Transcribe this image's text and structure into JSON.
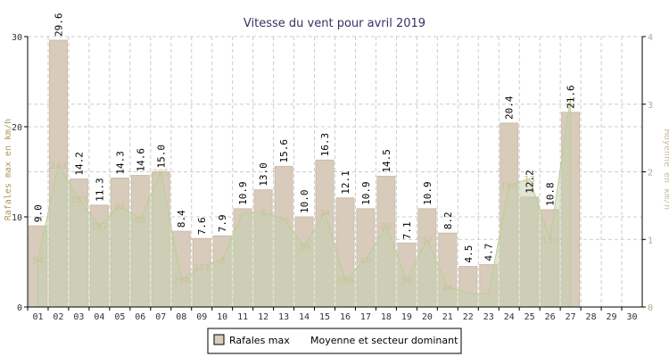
{
  "chart_data": {
    "type": "bar",
    "title": "Vitesse du vent pour avril 2019",
    "xlabel": "",
    "ylabel": "Rafales max en km/h",
    "ylabel_right": "Moyenne en km/h",
    "ylim": [
      0,
      30
    ],
    "ylim_right": [
      0,
      4
    ],
    "yticks": [
      0,
      10,
      20,
      30
    ],
    "yticks_right": [
      0,
      1,
      2,
      3,
      4
    ],
    "categories": [
      "01",
      "02",
      "03",
      "04",
      "05",
      "06",
      "07",
      "08",
      "09",
      "10",
      "11",
      "12",
      "13",
      "14",
      "15",
      "16",
      "17",
      "18",
      "19",
      "20",
      "21",
      "22",
      "23",
      "24",
      "25",
      "26",
      "27",
      "28",
      "29",
      "30"
    ],
    "series": [
      {
        "name": "Rafales max",
        "type": "bar",
        "axis": "left",
        "values": [
          9.0,
          29.6,
          14.2,
          11.3,
          14.3,
          14.6,
          15.0,
          8.4,
          7.6,
          7.9,
          10.9,
          13.0,
          15.6,
          10.0,
          16.3,
          12.1,
          10.9,
          14.5,
          7.1,
          10.9,
          8.2,
          4.5,
          4.7,
          20.4,
          12.2,
          10.8,
          21.6,
          null,
          null,
          null
        ],
        "labels": [
          "9.0",
          "29.6",
          "14.2",
          "11.3",
          "14.3",
          "14.6",
          "15.0",
          "8.4",
          "7.6",
          "7.9",
          "10.9",
          "13.0",
          "15.6",
          "10.0",
          "16.3",
          "12.1",
          "10.9",
          "14.5",
          "7.1",
          "10.9",
          "8.2",
          "4.5",
          "4.7",
          "20.4",
          "12.2",
          "10.8",
          "21.6",
          "",
          "",
          ""
        ]
      },
      {
        "name": "Moyenne et secteur dominant",
        "type": "area",
        "axis": "right",
        "values": [
          0.7,
          2.1,
          1.6,
          1.2,
          1.5,
          1.3,
          2.0,
          0.4,
          0.6,
          0.7,
          1.4,
          1.4,
          1.3,
          0.9,
          1.4,
          0.4,
          0.7,
          1.2,
          0.4,
          1.0,
          0.3,
          0.2,
          0.2,
          1.8,
          1.9,
          1.0,
          3.1,
          null,
          null,
          null
        ],
        "directions": [
          "54",
          "243",
          "183",
          "167",
          "92",
          "65",
          "205",
          "298",
          "311",
          "2",
          "",
          "6",
          "26",
          "39",
          "74",
          "186",
          "80",
          "80",
          "54",
          "37",
          "44",
          "",
          "",
          "184",
          "13",
          "130",
          "",
          "",
          "",
          ""
        ]
      }
    ],
    "legend": [
      "Rafales max",
      "Moyenne et secteur dominant"
    ],
    "colors": {
      "bar_fill": "#d8cbbc",
      "bar_stroke": "#cbbda9",
      "area_fill": "#c6d2b0",
      "area_stroke": "#b9cf8f",
      "grid": "#cccccc",
      "title": "#333366",
      "left_axis_label": "#a89a5c",
      "right_axis_label": "#c8bc98"
    }
  }
}
